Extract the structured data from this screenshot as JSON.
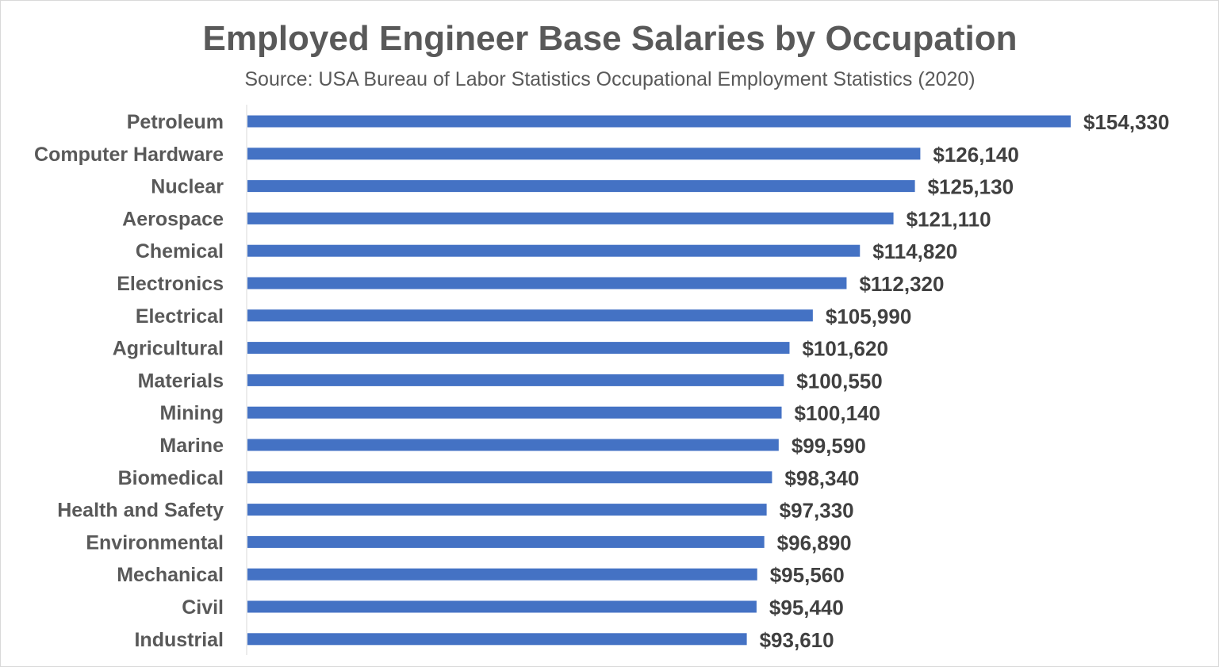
{
  "chart_data": {
    "type": "bar",
    "orientation": "horizontal",
    "title": "Employed Engineer Base Salaries by Occupation",
    "subtitle": "Source: USA Bureau of Labor Statistics Occupational Employment Statistics (2020)",
    "xlabel": "",
    "ylabel": "",
    "grid": false,
    "legend": "none",
    "xlim": [
      0,
      154330
    ],
    "series": [
      {
        "name": "Base Salary",
        "color": "#4472C4",
        "categories": [
          "Petroleum",
          "Computer Hardware",
          "Nuclear",
          "Aerospace",
          "Chemical",
          "Electronics",
          "Electrical",
          "Agricultural",
          "Materials",
          "Mining",
          "Marine",
          "Biomedical",
          "Health and Safety",
          "Environmental",
          "Mechanical",
          "Civil",
          "Industrial"
        ],
        "values": [
          154330,
          126140,
          125130,
          121110,
          114820,
          112320,
          105990,
          101620,
          100550,
          100140,
          99590,
          98340,
          97330,
          96890,
          95560,
          95440,
          93610
        ],
        "labels": [
          "$154,330",
          "$126,140",
          "$125,130",
          "$121,110",
          "$114,820",
          "$112,320",
          "$105,990",
          "$101,620",
          "$100,550",
          "$100,140",
          "$99,590",
          "$98,340",
          "$97,330",
          "$96,890",
          "$95,560",
          "$95,440",
          "$93,610"
        ]
      }
    ]
  }
}
